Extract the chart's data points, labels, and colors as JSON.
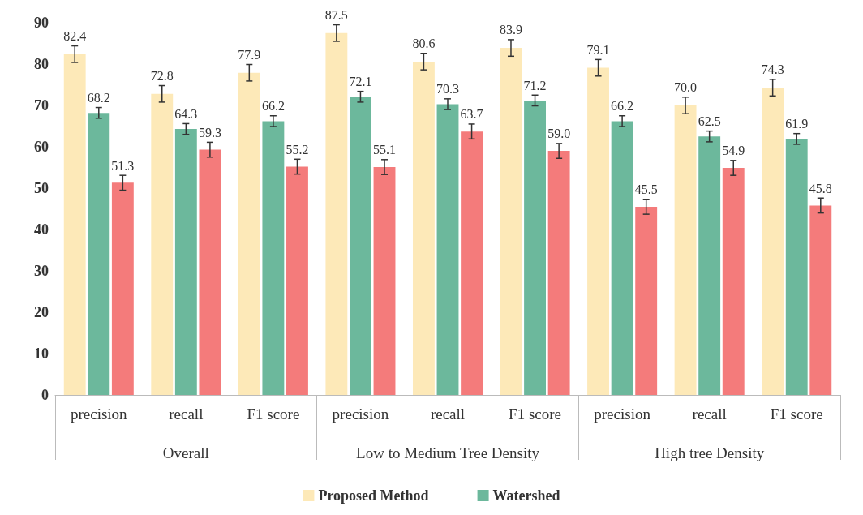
{
  "chart_data": {
    "type": "bar",
    "categories": [
      "precision",
      "recall",
      "F1 score",
      "precision",
      "recall",
      "F1 score",
      "precision",
      "recall",
      "F1 score"
    ],
    "annotations": [
      "Overall",
      "Low to Medium Tree Density",
      "High tree Density"
    ],
    "series": [
      {
        "name": "Proposed Method",
        "color": "#fde9b8",
        "values": [
          82.4,
          72.8,
          77.9,
          87.5,
          80.6,
          83.9,
          79.1,
          70.0,
          74.3
        ],
        "errors": [
          2,
          2,
          2,
          2,
          2,
          2,
          2,
          2,
          2
        ],
        "value_labels": [
          "82.4",
          "72.8",
          "77.9",
          "87.5",
          "80.6",
          "83.9",
          "79.1",
          "70.0",
          "74.3"
        ]
      },
      {
        "name": "Watershed",
        "color": "#6cb89c",
        "values": [
          68.2,
          64.3,
          66.2,
          72.1,
          70.3,
          71.2,
          66.2,
          62.5,
          61.9
        ],
        "errors": [
          1.3,
          1.3,
          1.3,
          1.3,
          1.3,
          1.3,
          1.3,
          1.3,
          1.3
        ],
        "value_labels": [
          "68.2",
          "64.3",
          "66.2",
          "72.1",
          "70.3",
          "71.2",
          "66.2",
          "62.5",
          "61.9"
        ]
      },
      {
        "color": "#f47b7b",
        "values": [
          51.3,
          59.3,
          55.2,
          55.1,
          63.7,
          59.0,
          45.5,
          54.9,
          45.8
        ],
        "errors": [
          1.8,
          1.8,
          1.8,
          1.8,
          1.8,
          1.8,
          1.8,
          1.8,
          1.8
        ],
        "value_labels": [
          "51.3",
          "59.3",
          "55.2",
          "55.1",
          "63.7",
          "59.0",
          "45.5",
          "54.9",
          "45.8"
        ]
      }
    ],
    "ylim": [
      0,
      90
    ],
    "yticks": [
      0,
      10,
      20,
      30,
      40,
      50,
      60,
      70,
      80,
      90
    ],
    "grid": false,
    "legend": "bottom"
  }
}
